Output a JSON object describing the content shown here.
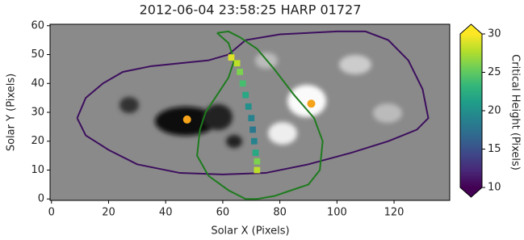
{
  "chart_data": {
    "type": "magnetogram",
    "title": "2012-06-04 23:58:25 HARP 01727",
    "x_label": "Solar X (Pixels)",
    "y_label": "Solar Y (Pixels)",
    "xlim": [
      -0.5,
      139.5
    ],
    "ylim": [
      -0.5,
      60.5
    ],
    "xticks": [
      0,
      20,
      40,
      60,
      80,
      100,
      120
    ],
    "yticks": [
      0,
      10,
      20,
      30,
      40,
      50,
      60
    ],
    "colorbar": {
      "label": "Critical Height (Pixels)",
      "colormap": "viridis",
      "clim": [
        10,
        30
      ],
      "ticks": [
        10,
        15,
        20,
        25,
        30
      ],
      "extend": "both"
    },
    "contours": [
      {
        "color": "#3d0f5e",
        "x": [
          9,
          12,
          18,
          25,
          35,
          45,
          55,
          62,
          68,
          80,
          100,
          110,
          118,
          125,
          130,
          132,
          128,
          118,
          105,
          90,
          75,
          60,
          45,
          30,
          20,
          12,
          9
        ],
        "y": [
          28,
          35,
          40,
          44,
          46,
          47,
          48,
          50,
          55,
          57,
          58,
          58,
          55,
          48,
          38,
          28,
          24,
          20,
          16,
          12,
          9,
          8.5,
          9,
          12,
          17,
          22,
          28
        ]
      },
      {
        "color": "#1e7b1e",
        "x": [
          58,
          62,
          64,
          62,
          58,
          54,
          52,
          51,
          55,
          62,
          68,
          72,
          78,
          84,
          90,
          94,
          95,
          92,
          85,
          78,
          72,
          66,
          62,
          58
        ],
        "y": [
          57.5,
          54,
          48,
          42,
          36,
          30,
          24,
          15,
          8,
          3,
          0,
          0,
          1,
          3,
          5,
          10,
          20,
          28,
          36,
          45,
          52,
          56,
          58,
          57.5
        ]
      }
    ],
    "pil": {
      "x": [
        63,
        65,
        66,
        67,
        68,
        69,
        70,
        70.5,
        71,
        71.5,
        72,
        72
      ],
      "y": [
        49,
        47,
        44,
        40,
        36,
        32,
        28,
        24,
        20,
        16,
        13,
        10
      ],
      "height": [
        29,
        28,
        26,
        24,
        22,
        20,
        19,
        18,
        19,
        22,
        26,
        28
      ]
    },
    "centroids": {
      "color": "#f5a31a",
      "x": [
        47.5,
        91
      ],
      "y": [
        27.5,
        33
      ]
    }
  }
}
